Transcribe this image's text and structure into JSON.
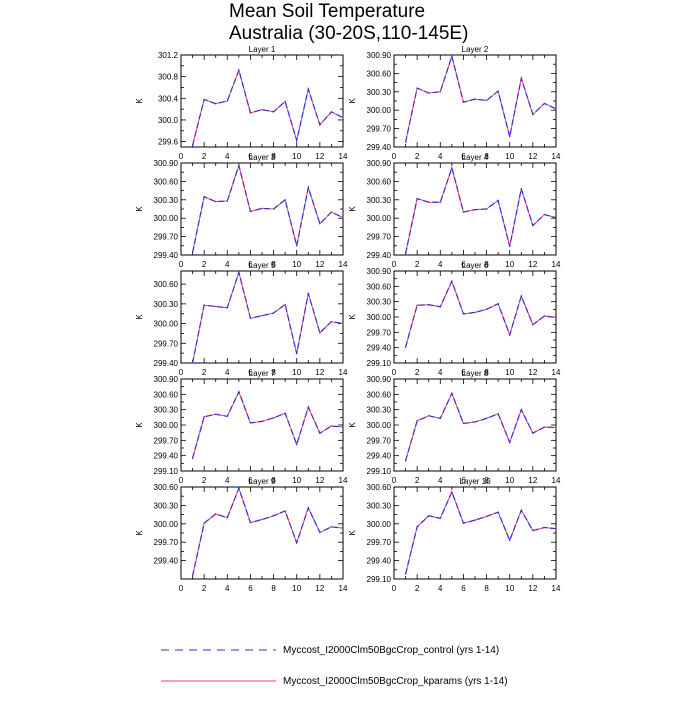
{
  "chart_data": {
    "type": "line",
    "title": "Mean Soil Temperature",
    "subtitle": "Australia (30-20S,110-145E)",
    "x_ticks": [
      "0",
      "2",
      "4",
      "6",
      "8",
      "10",
      "12",
      "14"
    ],
    "xlim": [
      0,
      14
    ],
    "colors": {
      "control": "#3b2bd6",
      "kparams": "#ff3b6e"
    },
    "legend": [
      {
        "label": "Myccost_I2000Clm50BgcCrop_control (yrs 1-14)",
        "style": "dashed",
        "color": "#3b2bd6"
      },
      {
        "label": "Myccost_I2000Clm50BgcCrop_kparams (yrs 1-14)",
        "style": "solid",
        "color": "#ff3b6e"
      }
    ],
    "panels": [
      {
        "name": "Layer 1",
        "ylabel": "K",
        "ylim": [
          299.5,
          301.2
        ],
        "y_ticks": [
          "299.6",
          "300.0",
          "300.4",
          "300.8",
          "301.2"
        ],
        "y_tick_values": [
          299.6,
          300.0,
          300.4,
          300.8,
          301.2
        ],
        "x": [
          1,
          2,
          3,
          4,
          5,
          6,
          7,
          8,
          9,
          10,
          11,
          12,
          13,
          14
        ],
        "series": [
          {
            "name": "Myccost_I2000Clm50BgcCrop_control (yrs 1-14)",
            "values": [
              299.53,
              300.38,
              300.3,
              300.35,
              300.92,
              300.13,
              300.19,
              300.15,
              300.34,
              299.62,
              300.57,
              299.91,
              300.15,
              300.04
            ]
          },
          {
            "name": "Myccost_I2000Clm50BgcCrop_kparams (yrs 1-14)",
            "values": [
              299.53,
              300.38,
              300.3,
              300.35,
              300.92,
              300.13,
              300.19,
              300.15,
              300.34,
              299.62,
              300.57,
              299.91,
              300.15,
              300.04
            ]
          }
        ]
      },
      {
        "name": "Layer 2",
        "ylabel": "K",
        "ylim": [
          299.4,
          300.9
        ],
        "y_ticks": [
          "299.40",
          "299.70",
          "300.00",
          "300.30",
          "300.60",
          "300.90"
        ],
        "y_tick_values": [
          299.4,
          299.7,
          300.0,
          300.3,
          300.6,
          300.9
        ],
        "x": [
          1,
          2,
          3,
          4,
          5,
          6,
          7,
          8,
          9,
          10,
          11,
          12,
          13,
          14
        ],
        "series": [
          {
            "name": "Myccost_I2000Clm50BgcCrop_control (yrs 1-14)",
            "values": [
              299.48,
              300.36,
              300.28,
              300.3,
              300.88,
              300.13,
              300.18,
              300.16,
              300.31,
              299.57,
              300.52,
              299.93,
              300.11,
              300.02
            ]
          },
          {
            "name": "Myccost_I2000Clm50BgcCrop_kparams (yrs 1-14)",
            "values": [
              299.48,
              300.36,
              300.28,
              300.3,
              300.88,
              300.13,
              300.18,
              300.16,
              300.31,
              299.57,
              300.52,
              299.93,
              300.11,
              300.02
            ]
          }
        ]
      },
      {
        "name": "Layer 3",
        "ylabel": "K",
        "ylim": [
          299.4,
          300.9
        ],
        "y_ticks": [
          "299.40",
          "299.70",
          "300.00",
          "300.30",
          "300.60",
          "300.90"
        ],
        "y_tick_values": [
          299.4,
          299.7,
          300.0,
          300.3,
          300.6,
          300.9
        ],
        "x": [
          1,
          2,
          3,
          4,
          5,
          6,
          7,
          8,
          9,
          10,
          11,
          12,
          13,
          14
        ],
        "series": [
          {
            "name": "Myccost_I2000Clm50BgcCrop_control (yrs 1-14)",
            "values": [
              299.44,
              300.35,
              300.27,
              300.28,
              300.86,
              300.11,
              300.16,
              300.15,
              300.3,
              299.55,
              300.5,
              299.91,
              300.1,
              300.01
            ]
          },
          {
            "name": "Myccost_I2000Clm50BgcCrop_kparams (yrs 1-14)",
            "values": [
              299.44,
              300.35,
              300.27,
              300.28,
              300.86,
              300.11,
              300.16,
              300.15,
              300.3,
              299.55,
              300.5,
              299.91,
              300.1,
              300.01
            ]
          }
        ]
      },
      {
        "name": "Layer 4",
        "ylabel": "K",
        "ylim": [
          299.4,
          300.9
        ],
        "y_ticks": [
          "299.40",
          "299.70",
          "300.00",
          "300.30",
          "300.60",
          "300.90"
        ],
        "y_tick_values": [
          299.4,
          299.7,
          300.0,
          300.3,
          300.6,
          300.9
        ],
        "x": [
          1,
          2,
          3,
          4,
          5,
          6,
          7,
          8,
          9,
          10,
          11,
          12,
          13,
          14
        ],
        "series": [
          {
            "name": "Myccost_I2000Clm50BgcCrop_control (yrs 1-14)",
            "values": [
              299.42,
              300.32,
              300.26,
              300.26,
              300.82,
              300.1,
              300.14,
              300.15,
              300.29,
              299.54,
              300.48,
              299.88,
              300.06,
              300.01
            ]
          },
          {
            "name": "Myccost_I2000Clm50BgcCrop_kparams (yrs 1-14)",
            "values": [
              299.42,
              300.32,
              300.26,
              300.26,
              300.82,
              300.1,
              300.14,
              300.15,
              300.29,
              299.54,
              300.48,
              299.88,
              300.06,
              300.01
            ]
          }
        ]
      },
      {
        "name": "Layer 5",
        "ylabel": "K",
        "ylim": [
          299.4,
          300.8
        ],
        "y_ticks": [
          "299.40",
          "299.70",
          "300.00",
          "300.30",
          "300.60"
        ],
        "y_tick_values": [
          299.4,
          299.7,
          300.0,
          300.3,
          300.6
        ],
        "x": [
          1,
          2,
          3,
          4,
          5,
          6,
          7,
          8,
          9,
          10,
          11,
          12,
          13,
          14
        ],
        "series": [
          {
            "name": "Myccost_I2000Clm50BgcCrop_control (yrs 1-14)",
            "values": [
              299.4,
              300.28,
              300.26,
              300.24,
              300.78,
              300.08,
              300.12,
              300.16,
              300.29,
              299.54,
              300.46,
              299.86,
              300.03,
              300.0
            ]
          },
          {
            "name": "Myccost_I2000Clm50BgcCrop_kparams (yrs 1-14)",
            "values": [
              299.4,
              300.28,
              300.26,
              300.24,
              300.78,
              300.08,
              300.12,
              300.16,
              300.29,
              299.54,
              300.46,
              299.86,
              300.03,
              300.0
            ]
          }
        ]
      },
      {
        "name": "Layer 6",
        "ylabel": "K",
        "ylim": [
          299.1,
          300.9
        ],
        "y_ticks": [
          "299.10",
          "299.40",
          "299.70",
          "300.00",
          "300.30",
          "300.60",
          "300.90"
        ],
        "y_tick_values": [
          299.1,
          299.4,
          299.7,
          300.0,
          300.3,
          300.6,
          300.9
        ],
        "x": [
          1,
          2,
          3,
          4,
          5,
          6,
          7,
          8,
          9,
          10,
          11,
          12,
          13,
          14
        ],
        "series": [
          {
            "name": "Myccost_I2000Clm50BgcCrop_control (yrs 1-14)",
            "values": [
              299.41,
              300.23,
              300.24,
              300.2,
              300.7,
              300.06,
              300.09,
              300.15,
              300.26,
              299.65,
              300.41,
              299.85,
              300.02,
              299.99
            ]
          },
          {
            "name": "Myccost_I2000Clm50BgcCrop_kparams (yrs 1-14)",
            "values": [
              299.41,
              300.23,
              300.24,
              300.2,
              300.7,
              300.06,
              300.09,
              300.15,
              300.26,
              299.65,
              300.41,
              299.85,
              300.02,
              299.99
            ]
          }
        ]
      },
      {
        "name": "Layer 7",
        "ylabel": "K",
        "ylim": [
          299.1,
          300.9
        ],
        "y_ticks": [
          "299.10",
          "299.40",
          "299.70",
          "300.00",
          "300.30",
          "300.60",
          "300.90"
        ],
        "y_tick_values": [
          299.1,
          299.4,
          299.7,
          300.0,
          300.3,
          300.6,
          300.9
        ],
        "x": [
          1,
          2,
          3,
          4,
          5,
          6,
          7,
          8,
          9,
          10,
          11,
          12,
          13,
          14
        ],
        "series": [
          {
            "name": "Myccost_I2000Clm50BgcCrop_control (yrs 1-14)",
            "values": [
              299.35,
              300.16,
              300.21,
              300.17,
              300.65,
              300.04,
              300.07,
              300.14,
              300.23,
              299.62,
              300.35,
              299.84,
              299.98,
              299.96
            ]
          },
          {
            "name": "Myccost_I2000Clm50BgcCrop_kparams (yrs 1-14)",
            "values": [
              299.35,
              300.16,
              300.21,
              300.17,
              300.65,
              300.04,
              300.07,
              300.14,
              300.23,
              299.62,
              300.35,
              299.84,
              299.98,
              299.96
            ]
          }
        ]
      },
      {
        "name": "Layer 8",
        "ylabel": "K",
        "ylim": [
          299.1,
          300.9
        ],
        "y_ticks": [
          "299.10",
          "299.40",
          "299.70",
          "300.00",
          "300.30",
          "300.60",
          "300.90"
        ],
        "y_tick_values": [
          299.1,
          299.4,
          299.7,
          300.0,
          300.3,
          300.6,
          300.9
        ],
        "x": [
          1,
          2,
          3,
          4,
          5,
          6,
          7,
          8,
          9,
          10,
          11,
          12,
          13,
          14
        ],
        "series": [
          {
            "name": "Myccost_I2000Clm50BgcCrop_control (yrs 1-14)",
            "values": [
              299.3,
              300.08,
              300.18,
              300.13,
              300.62,
              300.03,
              300.06,
              300.13,
              300.22,
              299.66,
              300.3,
              299.84,
              299.96,
              299.95
            ]
          },
          {
            "name": "Myccost_I2000Clm50BgcCrop_kparams (yrs 1-14)",
            "values": [
              299.3,
              300.08,
              300.18,
              300.13,
              300.62,
              300.03,
              300.06,
              300.13,
              300.22,
              299.66,
              300.3,
              299.84,
              299.96,
              299.95
            ]
          }
        ]
      },
      {
        "name": "Layer 9",
        "ylabel": "K",
        "ylim": [
          299.1,
          300.6
        ],
        "y_ticks": [
          "299.40",
          "299.70",
          "300.00",
          "300.30",
          "300.60"
        ],
        "y_tick_values": [
          299.4,
          299.7,
          300.0,
          300.3,
          300.6
        ],
        "x": [
          1,
          2,
          3,
          4,
          5,
          6,
          7,
          8,
          9,
          10,
          11,
          12,
          13,
          14
        ],
        "series": [
          {
            "name": "Myccost_I2000Clm50BgcCrop_control (yrs 1-14)",
            "values": [
              299.15,
              300.01,
              300.16,
              300.1,
              300.58,
              300.02,
              300.07,
              300.13,
              300.21,
              299.69,
              300.26,
              299.86,
              299.95,
              299.93
            ]
          },
          {
            "name": "Myccost_I2000Clm50BgcCrop_kparams (yrs 1-14)",
            "values": [
              299.15,
              300.01,
              300.16,
              300.1,
              300.58,
              300.02,
              300.07,
              300.13,
              300.21,
              299.69,
              300.26,
              299.86,
              299.95,
              299.93
            ]
          }
        ]
      },
      {
        "name": "Layer 10",
        "ylabel": "K",
        "ylim": [
          299.1,
          300.6
        ],
        "y_ticks": [
          "299.10",
          "299.40",
          "299.70",
          "300.00",
          "300.30",
          "300.60"
        ],
        "y_tick_values": [
          299.1,
          299.4,
          299.7,
          300.0,
          300.3,
          300.6
        ],
        "x": [
          1,
          2,
          3,
          4,
          5,
          6,
          7,
          8,
          9,
          10,
          11,
          12,
          13,
          14
        ],
        "series": [
          {
            "name": "Myccost_I2000Clm50BgcCrop_control (yrs 1-14)",
            "values": [
              299.18,
              299.95,
              300.13,
              300.09,
              300.52,
              300.01,
              300.06,
              300.12,
              300.19,
              299.73,
              300.22,
              299.89,
              299.94,
              299.92
            ]
          },
          {
            "name": "Myccost_I2000Clm50BgcCrop_kparams (yrs 1-14)",
            "values": [
              299.18,
              299.95,
              300.13,
              300.09,
              300.52,
              300.01,
              300.06,
              300.12,
              300.19,
              299.73,
              300.22,
              299.89,
              299.94,
              299.92
            ]
          }
        ]
      }
    ]
  }
}
